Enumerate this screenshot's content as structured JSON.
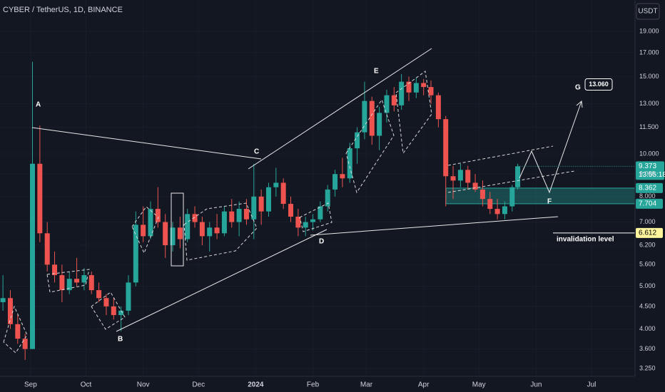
{
  "chart_data": {
    "type": "candlestick",
    "title": "CYBER / TetherUS, 1D, BINANCE",
    "currency": "USDT",
    "log_scale": true,
    "grid": true,
    "up_color": "#26a69a",
    "down_color": "#ef5350",
    "xlim": [
      -16.6,
      327.6
    ],
    "ylim": [
      3.12,
      22.4
    ],
    "xticks": [
      {
        "value": 0,
        "label": "Sep"
      },
      {
        "value": 30,
        "label": "Oct"
      },
      {
        "value": 61,
        "label": "Nov"
      },
      {
        "value": 91,
        "label": "Dec"
      },
      {
        "value": 122,
        "label": "2024"
      },
      {
        "value": 153,
        "label": "Feb"
      },
      {
        "value": 182,
        "label": "Mar"
      },
      {
        "value": 213,
        "label": "Apr"
      },
      {
        "value": 243,
        "label": "May"
      },
      {
        "value": 274,
        "label": "Jun"
      },
      {
        "value": 304,
        "label": "Jul"
      }
    ],
    "yticks": [
      {
        "value": 19,
        "label": "19.000"
      },
      {
        "value": 17,
        "label": "17.000"
      },
      {
        "value": 15,
        "label": "15.000"
      },
      {
        "value": 13,
        "label": "13.000"
      },
      {
        "value": 11.5,
        "label": "11.500"
      },
      {
        "value": 10,
        "label": "10.000"
      },
      {
        "value": 9,
        "label": "9.000"
      },
      {
        "value": 8,
        "label": "8.000"
      },
      {
        "value": 7,
        "label": "7.000"
      },
      {
        "value": 6.2,
        "label": "6.200"
      },
      {
        "value": 5.6,
        "label": "5.600"
      },
      {
        "value": 5,
        "label": "5.000"
      },
      {
        "value": 4.5,
        "label": "4.500"
      },
      {
        "value": 4,
        "label": "4.000"
      },
      {
        "value": 3.6,
        "label": "3.600"
      },
      {
        "value": 3.25,
        "label": "3.250"
      }
    ],
    "x": [
      -15,
      -11,
      -7,
      -3,
      1,
      5,
      9,
      13,
      17,
      21,
      25,
      29,
      33,
      37,
      41,
      45,
      49,
      53,
      57,
      61,
      65,
      69,
      73,
      77,
      81,
      85,
      89,
      93,
      97,
      101,
      105,
      109,
      113,
      117,
      121,
      125,
      129,
      133,
      137,
      141,
      145,
      149,
      153,
      157,
      161,
      165,
      169,
      173,
      177,
      181,
      185,
      189,
      193,
      197,
      201,
      205,
      209,
      213,
      217,
      221,
      225,
      229,
      233,
      237,
      241,
      245,
      249,
      253,
      257,
      261,
      264
    ],
    "open": [
      4.6,
      4.7,
      4.1,
      3.8,
      3.6,
      9.5,
      6.6,
      5.6,
      5.3,
      4.9,
      5.2,
      5.1,
      5.3,
      4.9,
      4.7,
      4.5,
      4.3,
      4.4,
      5.1,
      6.9,
      6.5,
      7.5,
      7.0,
      6.2,
      6.8,
      6.4,
      7.3,
      7.0,
      6.5,
      6.8,
      6.6,
      7.4,
      7.0,
      7.5,
      7.1,
      8.0,
      7.4,
      8.4,
      8.6,
      7.7,
      7.2,
      6.8,
      7.0,
      7.1,
      7.6,
      8.3,
      9.0,
      8.8,
      10.3,
      11.2,
      13.2,
      11.0,
      12.4,
      13.6,
      12.9,
      14.6,
      13.8,
      14.5,
      14.2,
      13.6,
      12.0,
      8.9,
      8.7,
      9.2,
      8.6,
      8.3,
      7.9,
      7.5,
      7.3,
      7.6,
      8.4
    ],
    "high": [
      5.3,
      4.9,
      4.3,
      3.9,
      16.2,
      11.6,
      7.0,
      6.0,
      5.6,
      5.4,
      5.8,
      5.5,
      5.4,
      5.1,
      4.8,
      4.7,
      4.5,
      5.3,
      7.4,
      7.6,
      7.8,
      8.4,
      7.3,
      7.0,
      7.2,
      7.5,
      7.6,
      7.2,
      7.0,
      7.3,
      7.6,
      7.9,
      7.8,
      7.9,
      9.5,
      8.3,
      8.6,
      9.3,
      8.8,
      8.0,
      7.5,
      7.2,
      7.3,
      7.8,
      8.5,
      9.2,
      9.8,
      10.6,
      11.5,
      14.6,
      13.5,
      12.8,
      14.0,
      14.2,
      15.2,
      15.0,
      14.9,
      14.8,
      14.7,
      13.8,
      12.2,
      9.4,
      9.5,
      9.4,
      9.0,
      8.7,
      8.2,
      7.9,
      7.8,
      8.5,
      9.5
    ],
    "low": [
      4.4,
      4.0,
      3.7,
      3.4,
      3.6,
      6.3,
      5.4,
      5.1,
      4.6,
      4.8,
      5.0,
      4.9,
      4.8,
      4.6,
      4.3,
      4.2,
      3.95,
      4.3,
      5.0,
      6.3,
      6.4,
      6.8,
      5.8,
      6.0,
      6.1,
      6.3,
      6.8,
      6.2,
      6.0,
      6.4,
      6.5,
      6.8,
      6.5,
      6.9,
      6.4,
      6.9,
      7.2,
      8.0,
      7.5,
      7.0,
      6.5,
      6.5,
      6.7,
      7.0,
      7.4,
      8.0,
      8.4,
      8.6,
      9.5,
      10.8,
      10.5,
      10.2,
      11.8,
      12.5,
      12.6,
      13.2,
      13.4,
      13.6,
      13.0,
      11.5,
      7.6,
      7.9,
      8.4,
      8.3,
      8.2,
      7.6,
      7.3,
      7.1,
      7.1,
      7.4,
      8.3
    ],
    "close": [
      4.7,
      4.1,
      3.8,
      3.6,
      9.5,
      6.6,
      5.6,
      5.3,
      4.9,
      5.2,
      5.1,
      5.3,
      4.9,
      4.7,
      4.5,
      4.3,
      4.4,
      5.1,
      6.9,
      6.5,
      7.5,
      7.0,
      6.2,
      6.8,
      6.4,
      7.3,
      7.0,
      6.5,
      6.8,
      6.6,
      7.4,
      7.0,
      7.5,
      7.1,
      8.0,
      7.4,
      8.4,
      8.6,
      7.7,
      7.2,
      6.8,
      7.0,
      7.1,
      7.6,
      8.3,
      9.0,
      8.8,
      10.3,
      11.2,
      13.2,
      11.0,
      12.4,
      13.6,
      12.9,
      14.6,
      13.8,
      14.5,
      14.2,
      13.6,
      12.0,
      8.9,
      8.7,
      9.2,
      8.6,
      8.3,
      7.9,
      7.5,
      7.3,
      7.6,
      8.4,
      9.373
    ],
    "current_price": {
      "value": 9.373,
      "countdown": "13:55:18",
      "color": "#26a69a"
    },
    "zone": {
      "top": 8.362,
      "bottom": 7.704,
      "color": "#26a69a"
    },
    "invalidation": {
      "value": 6.612,
      "label": "invalidation level",
      "color": "#fff59d"
    },
    "target": {
      "value": 13.06,
      "label": "13.060"
    },
    "wave_labels": [
      "A",
      "B",
      "C",
      "D",
      "E",
      "F",
      "G"
    ]
  }
}
